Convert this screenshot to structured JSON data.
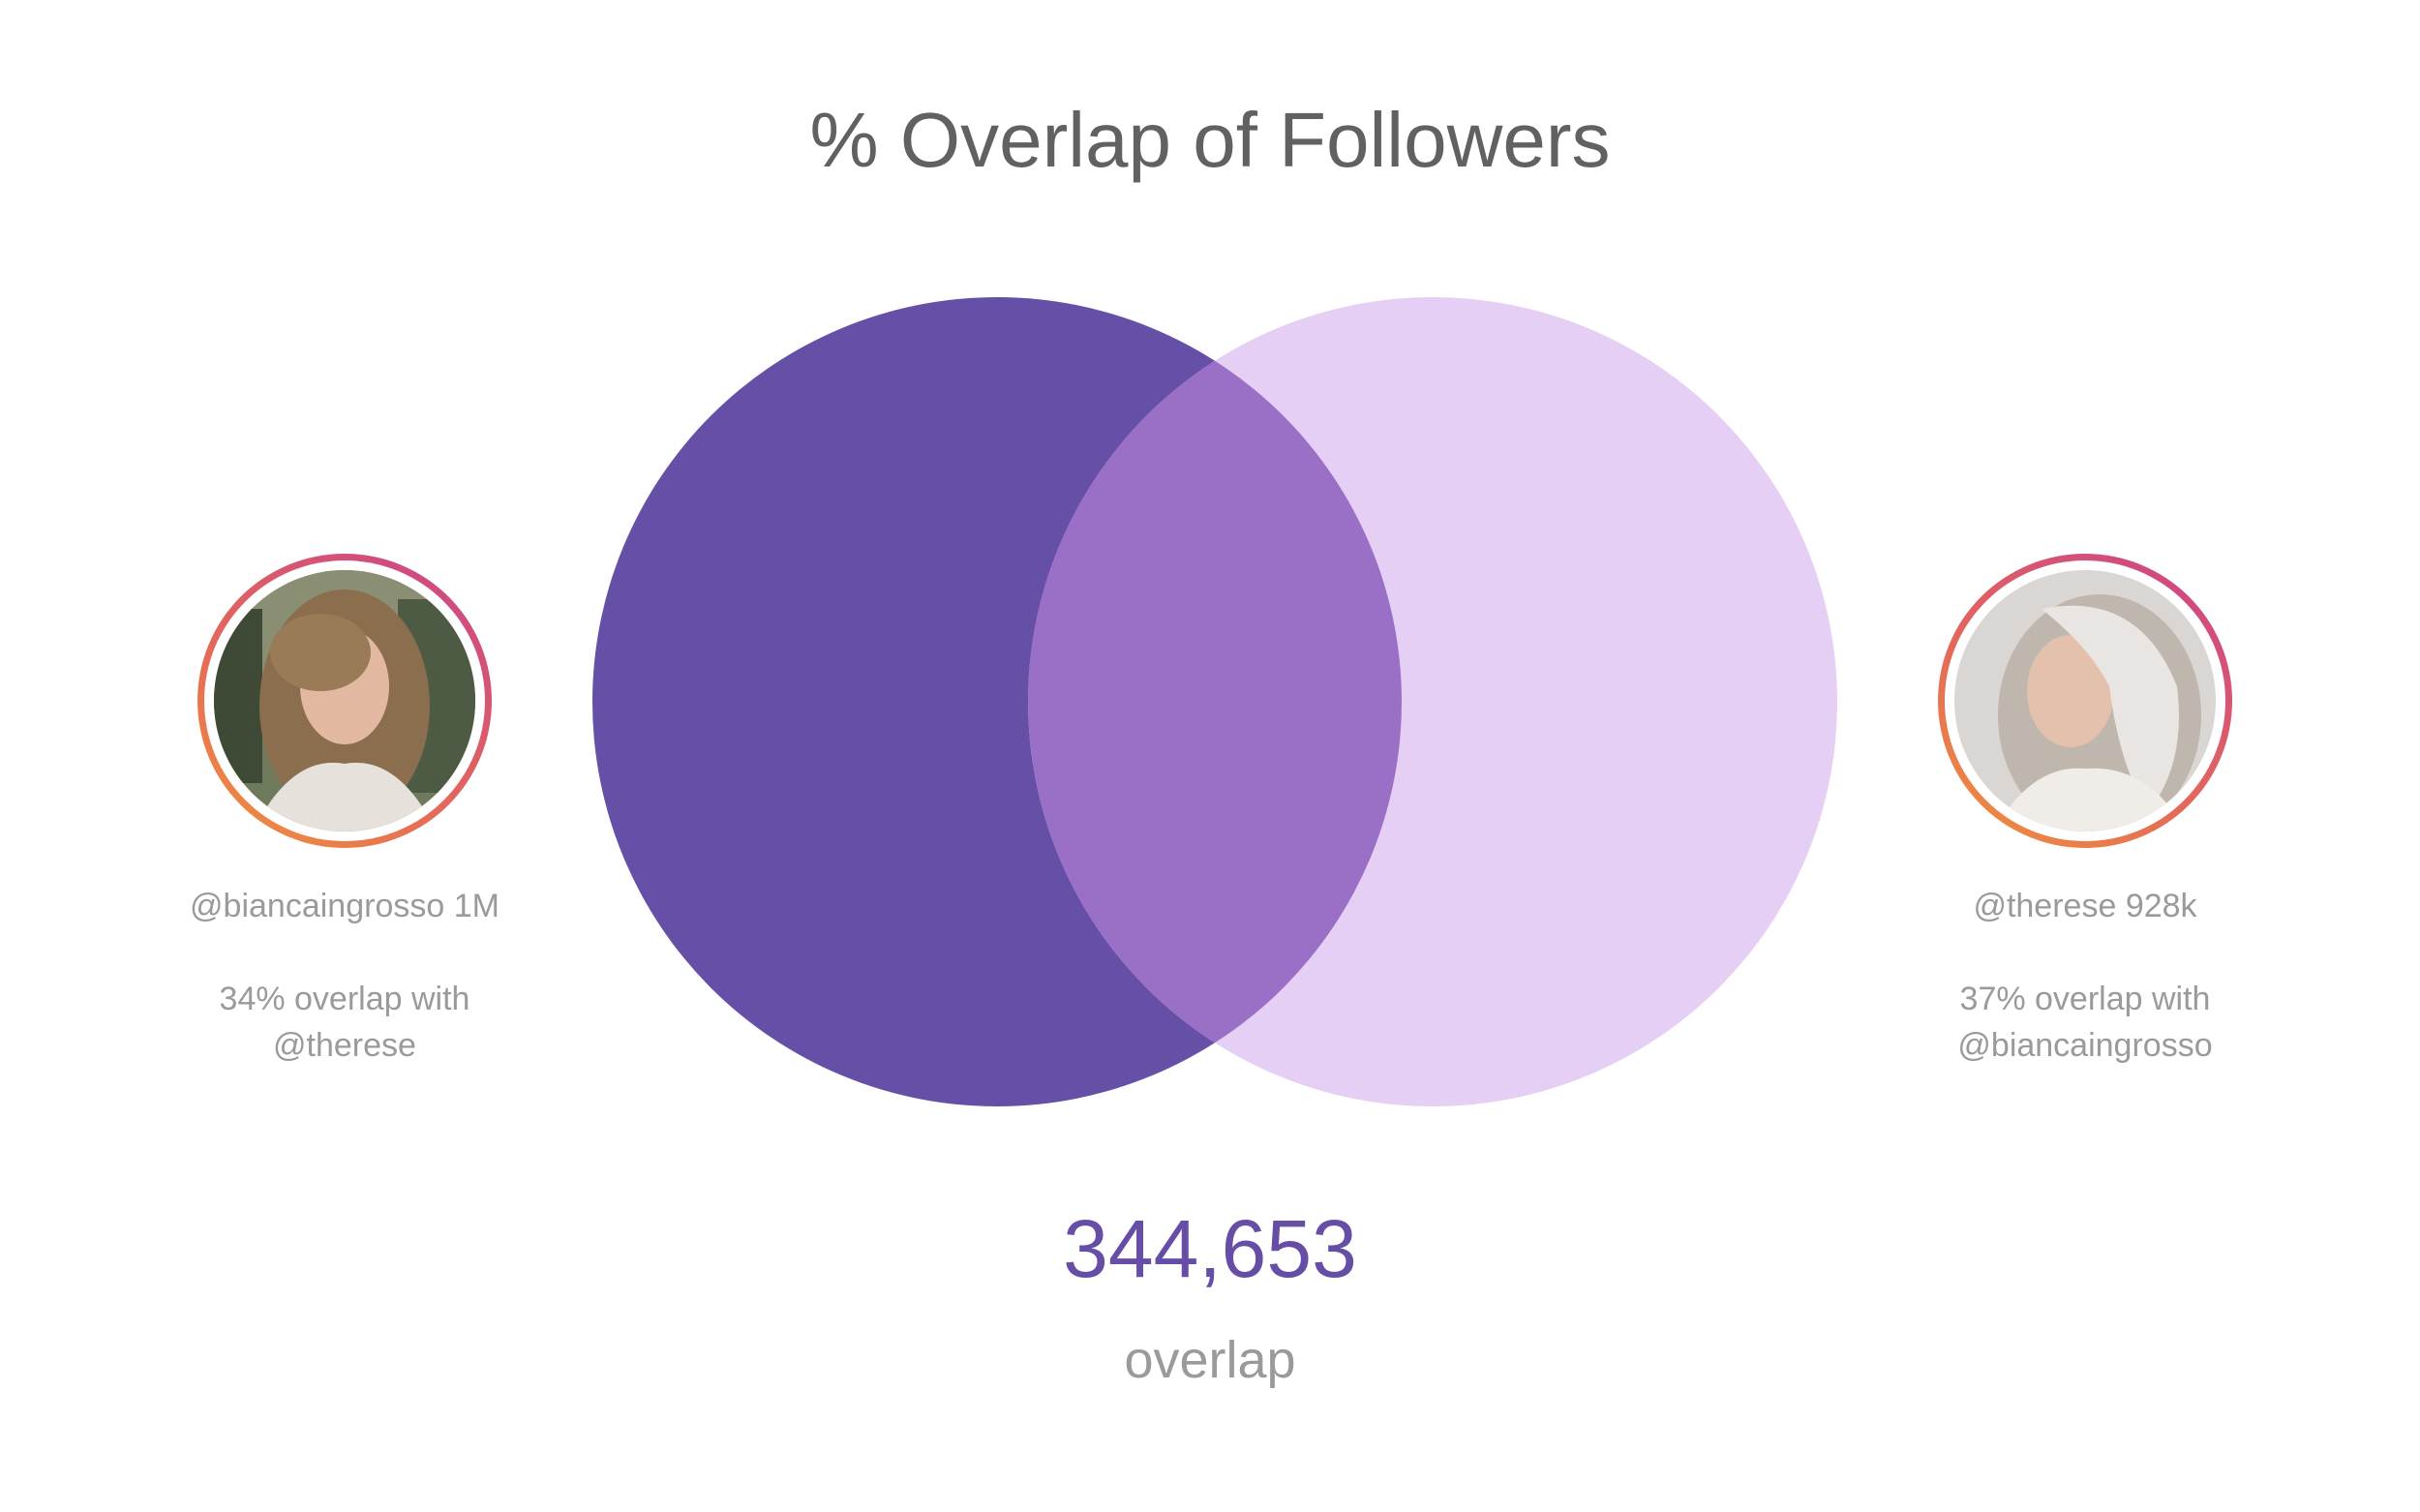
{
  "title": "% Overlap of Followers",
  "colors": {
    "left_circle": "#664fa7",
    "right_circle": "#e6cff4",
    "intersection": "#9a70c7",
    "accent_number": "#664da6",
    "text_gray": "#9a9a9a",
    "title_gray": "#616161"
  },
  "profiles": {
    "left": {
      "handle": "@biancaingrosso",
      "followers": "1M",
      "overlap_line1": "34% overlap with",
      "overlap_line2": "@therese",
      "avatar_icon": "profile-photo-icon"
    },
    "right": {
      "handle": "@therese",
      "followers": "928k",
      "overlap_line1": "37% overlap with",
      "overlap_line2": "@biancaingrosso",
      "avatar_icon": "profile-photo-icon"
    }
  },
  "overlap": {
    "count": "344,653",
    "label": "overlap"
  }
}
